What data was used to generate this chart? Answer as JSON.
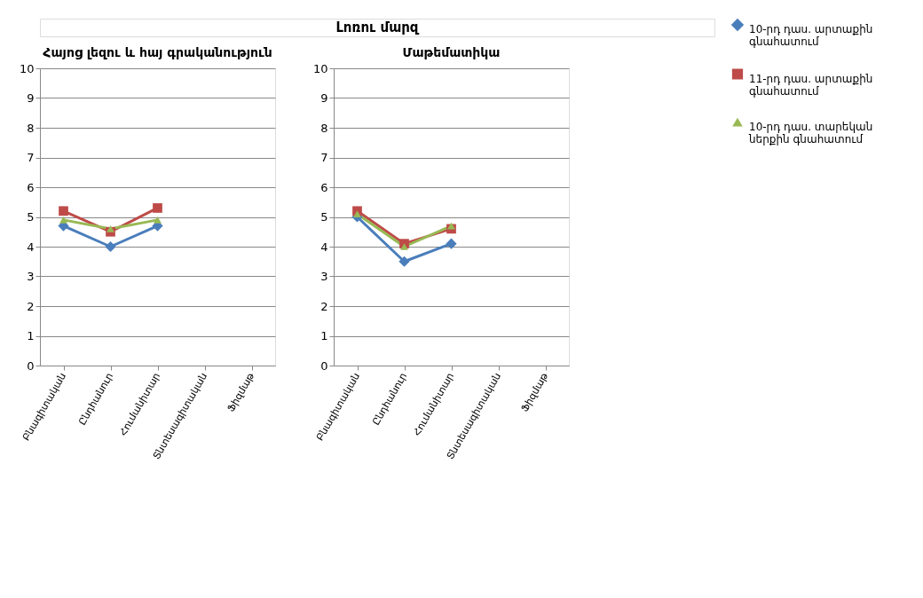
{
  "chart_data": [
    {
      "type": "other",
      "title": "Լոռու մարզ"
    },
    {
      "type": "line",
      "title": "Հայոց լեզու և հայ գրականություն",
      "categories": [
        "Բնագիտական",
        "Ընդհանուր",
        "Հումանիտար",
        "Տնտեսագիտական",
        "Ֆիզմաթ"
      ],
      "ylim": [
        0,
        10
      ],
      "yticks": [
        0,
        1,
        2,
        3,
        4,
        5,
        6,
        7,
        8,
        9,
        10
      ],
      "grid": "y",
      "legend": "right",
      "series": [
        {
          "name": "10-րդ դաս. արտաքին գնահատում",
          "color": "#4a7ebb",
          "marker": "diamond",
          "values": [
            4.7,
            4.0,
            4.7,
            null,
            null
          ]
        },
        {
          "name": "11-րդ դաս. արտաքին գնահատում",
          "color": "#be4b48",
          "marker": "square",
          "values": [
            5.2,
            4.5,
            5.3,
            null,
            null
          ]
        },
        {
          "name": "10-րդ դաս. տարեկան ներքին գնահատում",
          "color": "#98b954",
          "marker": "triangle",
          "values": [
            4.9,
            4.6,
            4.9,
            null,
            null
          ]
        }
      ]
    },
    {
      "type": "line",
      "title": "Մաթեմատիկա",
      "categories": [
        "Բնագիտական",
        "Ընդհանուր",
        "Հումանիտար",
        "Տնտեսագիտական",
        "Ֆիզմաթ"
      ],
      "ylim": [
        0,
        10
      ],
      "yticks": [
        0,
        1,
        2,
        3,
        4,
        5,
        6,
        7,
        8,
        9,
        10
      ],
      "grid": "y",
      "legend": "right",
      "series": [
        {
          "name": "10-րդ դաս. արտաքին գնահատում",
          "color": "#4a7ebb",
          "marker": "diamond",
          "values": [
            5.0,
            3.5,
            4.1,
            null,
            null
          ]
        },
        {
          "name": "11-րդ դաս. արտաքին գնահատում",
          "color": "#be4b48",
          "marker": "square",
          "values": [
            5.2,
            4.1,
            4.6,
            null,
            null
          ]
        },
        {
          "name": "10-րդ դաս. տարեկան ներքին գնահատում",
          "color": "#98b954",
          "marker": "triangle",
          "values": [
            5.1,
            4.0,
            4.7,
            null,
            null
          ]
        }
      ]
    }
  ]
}
